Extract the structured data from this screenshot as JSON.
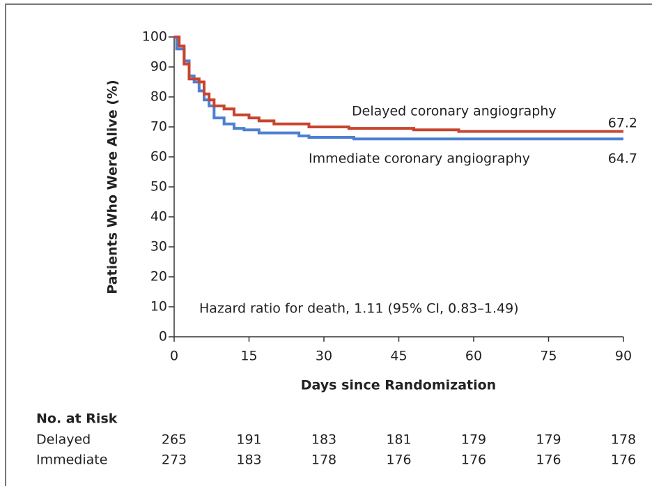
{
  "chart_data": {
    "type": "step",
    "ylabel": "Patients Who Were Alive (%)",
    "xlabel": "Days since Randomization",
    "xlim": [
      0,
      90
    ],
    "ylim": [
      0,
      100
    ],
    "xticks": [
      0,
      15,
      30,
      45,
      60,
      75,
      90
    ],
    "yticks": [
      0,
      10,
      20,
      30,
      40,
      50,
      60,
      70,
      80,
      90,
      100
    ],
    "series": [
      {
        "name": "Delayed coronary angiography",
        "color": "#c8442f",
        "end_label": 67.2,
        "x": [
          0,
          1,
          2,
          3,
          5,
          6,
          7,
          8,
          10,
          12,
          15,
          17,
          20,
          27,
          35,
          48,
          57,
          90
        ],
        "values": [
          100,
          97,
          91,
          86,
          85,
          81,
          79,
          77,
          76,
          74,
          73,
          72,
          71,
          70,
          69.5,
          69,
          68.5,
          68.5
        ]
      },
      {
        "name": "Immediate coronary angiography",
        "color": "#4d80d2",
        "end_label": 64.7,
        "x": [
          0,
          0.5,
          2,
          3,
          4,
          5,
          6,
          7,
          8,
          10,
          12,
          14,
          17,
          25,
          27,
          36,
          90
        ],
        "values": [
          100,
          96,
          92,
          87,
          85,
          82,
          79,
          77,
          73,
          71,
          69.5,
          69,
          68,
          67,
          66.5,
          66,
          66
        ]
      }
    ],
    "annotation": "Hazard ratio for death, 1.11 (95% CI, 0.83–1.49)",
    "risk_table": {
      "title": "No. at Risk",
      "rows": [
        {
          "name": "Delayed",
          "values": [
            265,
            191,
            183,
            181,
            179,
            179,
            178
          ]
        },
        {
          "name": "Immediate",
          "values": [
            273,
            183,
            178,
            176,
            176,
            176,
            176
          ]
        }
      ]
    }
  }
}
